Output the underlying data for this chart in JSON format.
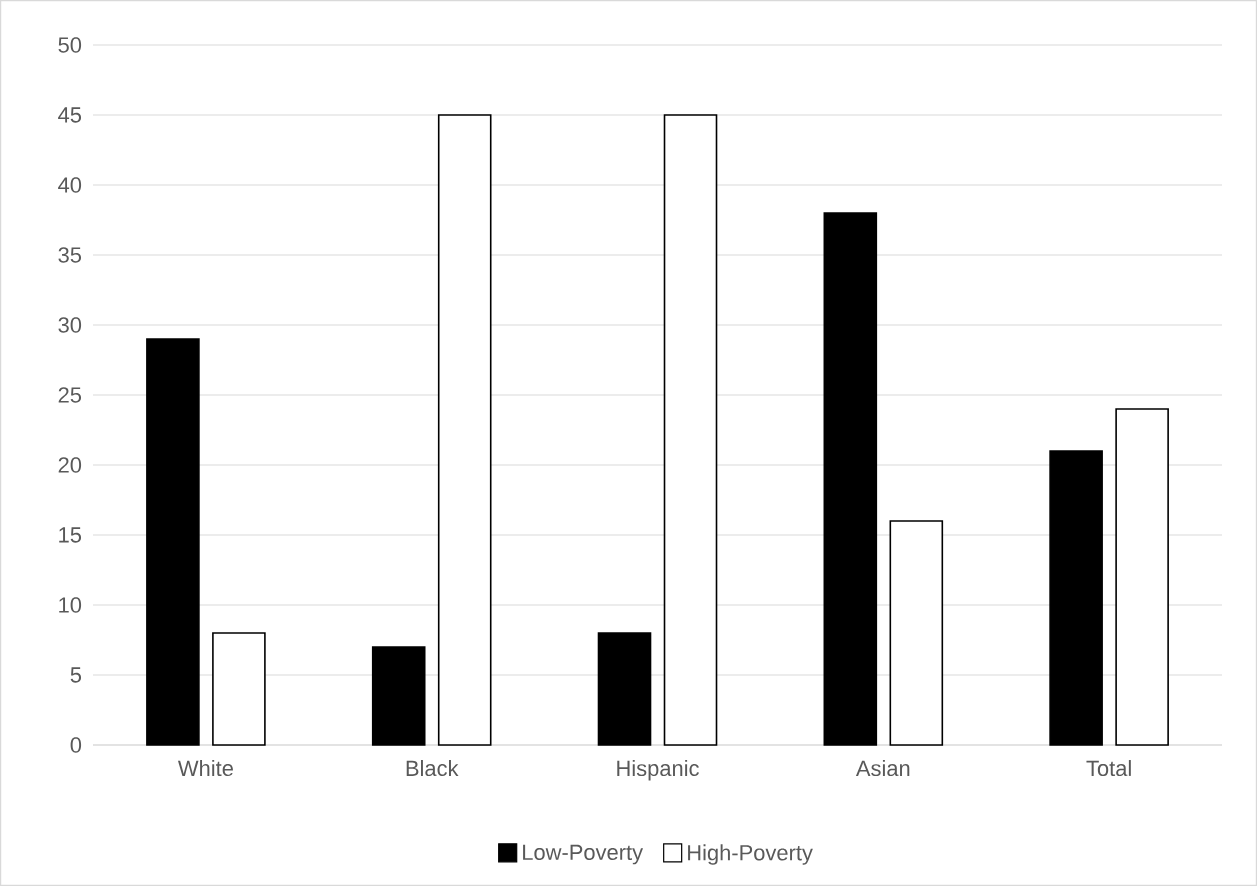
{
  "chart_data": {
    "type": "bar",
    "categories": [
      "White",
      "Black",
      "Hispanic",
      "Asian",
      "Total"
    ],
    "series": [
      {
        "name": "Low-Poverty",
        "color": "#000000",
        "values": [
          29,
          7,
          8,
          38,
          21
        ]
      },
      {
        "name": "High-Poverty",
        "color": "#ffffff",
        "values": [
          8,
          45,
          45,
          16,
          24
        ]
      }
    ],
    "ylim": [
      0,
      50
    ],
    "yticks": [
      0,
      5,
      10,
      15,
      20,
      25,
      30,
      35,
      40,
      45,
      50
    ],
    "grid": "y",
    "legend": "bottom"
  }
}
